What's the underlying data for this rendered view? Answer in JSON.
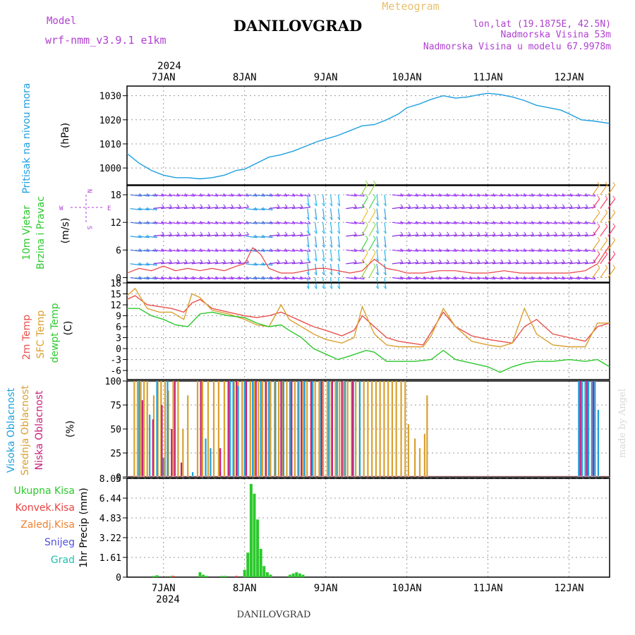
{
  "header": {
    "model_label": "Model",
    "model_name": "wrf-nmm_v3.9.1 e1km",
    "station": "DANILOVGRAD",
    "product": "Meteogram",
    "lonlat": "lon,lat (19.1875E, 42.5N)",
    "altitude": "Nadmorska Visina 53m",
    "model_altitude": "Nadmorska Visina u modelu 67.9978m",
    "footer_station": "DANILOVGRAD",
    "credit": "made by Angel"
  },
  "colors": {
    "pressure": "#1e9fe0",
    "temp2m": "#e8504a",
    "sfc_temp": "#d9a030",
    "dewpoint": "#2cc82c",
    "high_cloud": "#1ea0dc",
    "mid_cloud": "#d9a030",
    "low_cloud": "#c81e78",
    "total_precip": "#2cc82c",
    "conv_precip": "#e84040",
    "frozen_precip": "#f08030",
    "snow": "#5050e0",
    "hail": "#20c0b0",
    "wind_legend": "#b040d0",
    "ink": "#000000"
  },
  "chart_data": {
    "type": "line",
    "x_axis": {
      "year": "2024",
      "day_labels": [
        "7JAN",
        "8JAN",
        "9JAN",
        "10JAN",
        "11JAN",
        "12JAN"
      ],
      "day_values": [
        7,
        8,
        9,
        10,
        11,
        12
      ],
      "xlim": [
        6.55,
        12.5
      ],
      "grid": true
    },
    "panels": [
      {
        "id": "pressure",
        "type": "line",
        "ylabel_title": "Pritisak na nivou mora",
        "ylabel_unit": "(hPa)",
        "ylim": [
          993,
          1034
        ],
        "yticks": [
          "1000",
          "1010",
          "1020",
          "1030"
        ],
        "ytick_values": [
          1000,
          1010,
          1020,
          1030
        ],
        "series": [
          {
            "color_key": "pressure",
            "x": [
              6.55,
              6.7,
              6.85,
              7.0,
              7.15,
              7.3,
              7.45,
              7.6,
              7.75,
              7.9,
              8.0,
              8.15,
              8.3,
              8.45,
              8.6,
              8.75,
              8.9,
              9.0,
              9.15,
              9.3,
              9.45,
              9.6,
              9.75,
              9.9,
              10.0,
              10.15,
              10.3,
              10.45,
              10.6,
              10.75,
              10.9,
              11.0,
              11.15,
              11.3,
              11.45,
              11.6,
              11.75,
              11.9,
              12.0,
              12.15,
              12.3,
              12.5
            ],
            "y": [
              1006,
              1002,
              999,
              997,
              996,
              996,
              995.5,
              996,
              997,
              999,
              999.5,
              1002,
              1004.5,
              1005.5,
              1007,
              1009,
              1011,
              1012,
              1013.5,
              1015.5,
              1017.5,
              1018,
              1020,
              1022.5,
              1025,
              1026.5,
              1028.5,
              1030,
              1029,
              1029.5,
              1030.5,
              1031,
              1030.5,
              1029.5,
              1028,
              1026,
              1025,
              1024,
              1022.5,
              1020,
              1019.5,
              1018.5
            ]
          }
        ]
      },
      {
        "id": "wind",
        "type": "barbs",
        "ylabel_title": "10m Vjetar",
        "ylabel_title2": "Brzina i Pravac",
        "ylabel_unit": "(m/s)",
        "ylim": [
          -1,
          20
        ],
        "yticks": [
          "0",
          "6",
          "12",
          "18"
        ],
        "ytick_values": [
          0,
          6,
          12,
          18
        ],
        "compass": {
          "north": "N",
          "south": "S",
          "west": "W",
          "east": "E"
        },
        "speed_x": [
          6.55,
          6.7,
          6.85,
          7.0,
          7.15,
          7.3,
          7.45,
          7.6,
          7.75,
          7.9,
          8.0,
          8.1,
          8.2,
          8.3,
          8.45,
          8.6,
          8.75,
          8.9,
          9.0,
          9.15,
          9.3,
          9.45,
          9.6,
          9.75,
          9.9,
          10.0,
          10.2,
          10.4,
          10.6,
          10.8,
          11.0,
          11.2,
          11.4,
          11.6,
          11.8,
          12.0,
          12.2,
          12.35,
          12.5
        ],
        "speed_y": [
          1,
          2,
          1.5,
          2.5,
          1.5,
          2,
          1.5,
          2,
          1.5,
          2.5,
          3,
          6.5,
          5,
          2,
          1,
          1,
          1.5,
          2,
          2,
          1.5,
          1,
          1.5,
          4,
          2,
          1.5,
          1,
          1,
          1.5,
          1.5,
          1,
          1,
          1.5,
          1,
          1,
          1,
          1,
          1.5,
          3,
          7
        ]
      },
      {
        "id": "temperature",
        "type": "line",
        "ylabel_title": "2m Temp",
        "ylabel_title2": "SFC Temp",
        "ylabel_title3": "dewpt Temp",
        "ylabel_unit": "(C)",
        "ylim": [
          -8.5,
          18
        ],
        "yticks": [
          "-6",
          "-3",
          "0",
          "3",
          "6",
          "9",
          "12",
          "15",
          "18"
        ],
        "ytick_values": [
          -6,
          -3,
          0,
          3,
          6,
          9,
          12,
          15,
          18
        ],
        "series": [
          {
            "color_key": "temp2m",
            "x": [
              6.55,
              6.65,
              6.8,
              6.95,
              7.1,
              7.25,
              7.35,
              7.45,
              7.6,
              7.8,
              8.0,
              8.15,
              8.3,
              8.45,
              8.55,
              8.7,
              8.85,
              9.0,
              9.2,
              9.35,
              9.45,
              9.6,
              9.75,
              9.9,
              10.05,
              10.2,
              10.3,
              10.45,
              10.6,
              10.8,
              11.0,
              11.15,
              11.3,
              11.45,
              11.6,
              11.8,
              12.0,
              12.2,
              12.35,
              12.5
            ],
            "y": [
              13.5,
              14.5,
              12,
              11.5,
              11,
              10,
              12.5,
              13.5,
              11,
              10,
              9,
              8.5,
              9,
              10,
              9,
              7.5,
              6,
              5,
              3.5,
              5,
              9,
              6,
              3,
              2,
              1.5,
              1,
              4.5,
              10,
              6,
              3.5,
              2.5,
              2,
              1.5,
              6,
              8,
              4,
              3,
              2,
              6,
              7
            ]
          },
          {
            "color_key": "sfc_temp",
            "x": [
              6.55,
              6.65,
              6.8,
              6.95,
              7.1,
              7.25,
              7.35,
              7.45,
              7.6,
              7.8,
              8.0,
              8.15,
              8.3,
              8.45,
              8.55,
              8.7,
              8.85,
              9.0,
              9.2,
              9.35,
              9.45,
              9.6,
              9.75,
              9.9,
              10.05,
              10.2,
              10.3,
              10.45,
              10.6,
              10.8,
              11.0,
              11.15,
              11.3,
              11.45,
              11.6,
              11.8,
              12.0,
              12.2,
              12.35,
              12.5
            ],
            "y": [
              14.5,
              16.5,
              11,
              10,
              10,
              8,
              15,
              14,
              10.5,
              9.5,
              8,
              6.5,
              6,
              12,
              8,
              6,
              4,
              2.5,
              1.5,
              3,
              11.5,
              4,
              1,
              0.5,
              0.5,
              0.5,
              3.5,
              11,
              6,
              2,
              1,
              0.5,
              1.5,
              11,
              4,
              1,
              0.5,
              0.5,
              7,
              7
            ]
          },
          {
            "color_key": "dewpoint",
            "x": [
              6.55,
              6.7,
              6.85,
              7.0,
              7.15,
              7.3,
              7.45,
              7.6,
              7.8,
              8.0,
              8.15,
              8.3,
              8.45,
              8.55,
              8.7,
              8.85,
              9.0,
              9.15,
              9.3,
              9.5,
              9.6,
              9.75,
              9.9,
              10.1,
              10.3,
              10.45,
              10.6,
              10.8,
              11.0,
              11.15,
              11.3,
              11.45,
              11.6,
              11.8,
              12.0,
              12.2,
              12.35,
              12.5
            ],
            "y": [
              11,
              11,
              9,
              8,
              6.5,
              6,
              9.5,
              10,
              9,
              8.5,
              7,
              6,
              6.5,
              5,
              3,
              0,
              -1.5,
              -3,
              -2,
              -0.5,
              -1,
              -3.5,
              -3.5,
              -3.5,
              -3,
              -0.5,
              -3,
              -4,
              -5,
              -6.5,
              -5,
              -4,
              -3.5,
              -3.5,
              -3,
              -3.5,
              -3,
              -5
            ]
          }
        ]
      },
      {
        "id": "clouds",
        "type": "bar",
        "ylabel_title": "Visoka Oblacnost",
        "ylabel_title2": "Srednja Oblacnost",
        "ylabel_title3": "Niska Oblacnost",
        "ylabel_unit": "(%)",
        "ylim": [
          0,
          100
        ],
        "yticks": [
          "0",
          "25",
          "50",
          "75",
          "100"
        ],
        "ytick_values": [
          0,
          25,
          50,
          75,
          100
        ],
        "series": [
          {
            "color_key": "mid_cloud",
            "x": [
              6.64,
              6.68,
              6.72,
              6.76,
              6.8,
              6.88,
              6.93,
              6.97,
              7.02,
              7.06,
              7.12,
              7.18,
              7.24,
              7.3,
              7.42,
              7.48,
              7.55,
              7.62,
              7.68,
              7.75,
              7.8,
              7.87,
              7.92,
              7.97,
              8.02,
              8.07,
              8.12,
              8.17,
              8.22,
              8.27,
              8.32,
              8.37,
              8.42,
              8.47,
              8.52,
              8.57,
              8.62,
              8.67,
              8.72,
              8.77,
              8.82,
              8.87,
              8.92,
              8.97,
              9.02,
              9.07,
              9.12,
              9.17,
              9.22,
              9.27,
              9.32,
              9.37,
              9.42,
              9.47,
              9.52,
              9.57,
              9.62,
              9.67,
              9.72,
              9.77,
              9.82,
              9.87,
              9.93,
              9.98,
              10.02,
              10.1,
              10.16,
              10.22,
              10.25
            ],
            "y": [
              100,
              100,
              100,
              100,
              100,
              85,
              100,
              100,
              100,
              90,
              100,
              100,
              50,
              85,
              100,
              100,
              100,
              100,
              100,
              100,
              100,
              100,
              100,
              100,
              100,
              100,
              100,
              100,
              100,
              100,
              100,
              100,
              100,
              100,
              100,
              100,
              100,
              100,
              100,
              100,
              100,
              100,
              100,
              100,
              100,
              100,
              100,
              100,
              100,
              100,
              100,
              100,
              100,
              100,
              100,
              100,
              100,
              100,
              100,
              100,
              100,
              100,
              100,
              100,
              55,
              40,
              30,
              45,
              85
            ]
          },
          {
            "color_key": "high_cloud",
            "x": [
              6.7,
              6.83,
              6.92,
              7.0,
              7.05,
              7.36,
              7.52,
              7.58,
              7.7,
              7.82,
              7.86,
              7.92,
              8.0,
              8.1,
              8.2,
              8.3,
              8.38,
              8.48,
              8.56,
              8.66,
              8.74,
              8.84,
              8.94,
              9.04,
              9.14,
              9.24,
              9.34,
              9.42
            ],
            "y": [
              100,
              65,
              100,
              20,
              100,
              5,
              40,
              30,
              5,
              100,
              100,
              95,
              100,
              100,
              100,
              100,
              100,
              100,
              100,
              100,
              100,
              100,
              100,
              100,
              100,
              100,
              100,
              100
            ]
          },
          {
            "color_key": "low_cloud",
            "x": [
              6.74,
              6.87,
              6.98,
              7.1,
              7.14,
              7.22,
              7.46,
              7.7,
              7.8,
              7.9,
              8.02,
              8.14,
              8.26,
              8.45,
              8.58,
              8.7,
              8.82,
              8.95,
              9.08,
              9.2,
              9.33
            ],
            "y": [
              80,
              60,
              75,
              50,
              100,
              15,
              100,
              30,
              100,
              100,
              100,
              100,
              100,
              100,
              100,
              100,
              100,
              100,
              100,
              100,
              100
            ]
          },
          {
            "color_key": "high_cloud",
            "x": [
              12.12,
              12.16,
              12.2,
              12.24,
              12.28,
              12.32,
              12.36
            ],
            "y": [
              100,
              100,
              100,
              100,
              100,
              100,
              70
            ]
          },
          {
            "color_key": "low_cloud",
            "x": [
              12.14,
              12.22,
              12.3
            ],
            "y": [
              100,
              100,
              100
            ]
          }
        ]
      },
      {
        "id": "precip",
        "type": "bar",
        "ylabel_unit": "1hr Precip (mm)",
        "ylim": [
          0,
          8.05
        ],
        "yticks": [
          "0",
          "1.61",
          "3.22",
          "4.83",
          "6.44",
          "8.05"
        ],
        "ytick_values": [
          0,
          1.61,
          3.22,
          4.83,
          6.44,
          8.05
        ],
        "legend": [
          "Ukupna Kisa",
          "Konvek.Kisa",
          "Zaledj.Kisa",
          "Snijeg",
          "Grad"
        ],
        "series": [
          {
            "color_key": "total_precip",
            "x": [
              6.88,
              6.92,
              7.1,
              7.45,
              7.49,
              7.53,
              7.72,
              7.76,
              8.0,
              8.04,
              8.08,
              8.12,
              8.16,
              8.2,
              8.24,
              8.28,
              8.32,
              8.56,
              8.6,
              8.64,
              8.68,
              8.72
            ],
            "y": [
              0.1,
              0.15,
              0.1,
              0.4,
              0.2,
              0.1,
              0.1,
              0.1,
              0.6,
              2.0,
              7.6,
              6.8,
              4.7,
              2.3,
              0.9,
              0.4,
              0.2,
              0.2,
              0.3,
              0.4,
              0.3,
              0.2
            ]
          },
          {
            "color_key": "conv_precip",
            "x": [
              7.12,
              7.9
            ],
            "y": [
              0.1,
              0.1
            ]
          }
        ]
      }
    ]
  }
}
